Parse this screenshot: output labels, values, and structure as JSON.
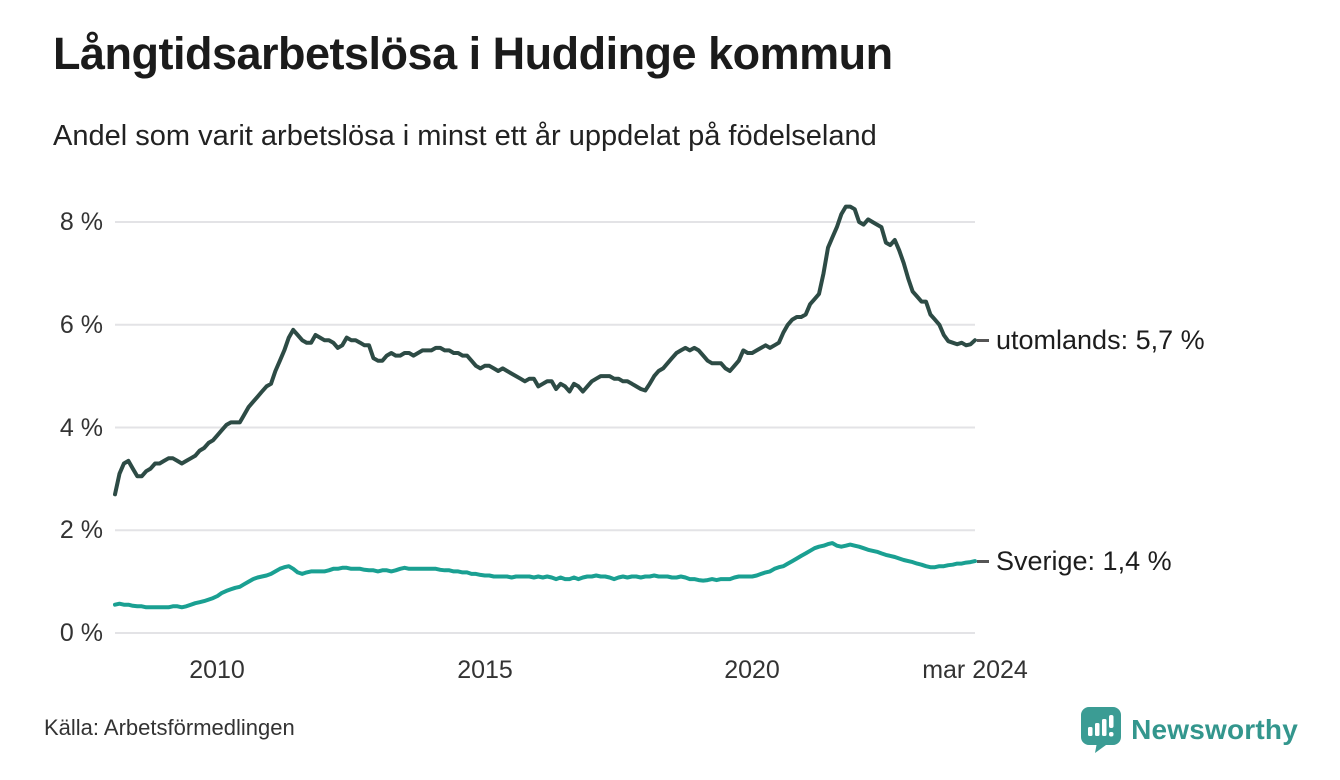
{
  "header": {
    "title": "Långtidsarbetslösa i Huddinge kommun",
    "subtitle": "Andel som varit arbetslösa i minst ett år uppdelat på födelseland"
  },
  "footer": {
    "source": "Källa: Arbetsförmedlingen",
    "brand": "Newsworthy"
  },
  "colors": {
    "utomlands_line": "#2d4b45",
    "sverige_line": "#1aa092",
    "grid": "#e3e3e6",
    "brand_teal": "#3b9c94",
    "text_dark": "#1d1d1d"
  },
  "chart_data": {
    "type": "line",
    "title": "Långtidsarbetslösa i Huddinge kommun",
    "subtitle": "Andel som varit arbetslösa i minst ett år uppdelat på födelseland",
    "grid": true,
    "legend_position": "end-of-line",
    "ylim": [
      0,
      8.6
    ],
    "x_start": {
      "year": 2008,
      "month": 2
    },
    "x_end": {
      "year": 2024,
      "month": 3
    },
    "yticks": [
      {
        "value": 0,
        "label": "0 %"
      },
      {
        "value": 2,
        "label": "2 %"
      },
      {
        "value": 4,
        "label": "4 %"
      },
      {
        "value": 6,
        "label": "6 %"
      },
      {
        "value": 8,
        "label": "8 %"
      }
    ],
    "xticks": [
      {
        "year": 2010,
        "month": 1,
        "label": "2010"
      },
      {
        "year": 2015,
        "month": 1,
        "label": "2015"
      },
      {
        "year": 2020,
        "month": 1,
        "label": "2020"
      },
      {
        "year": 2024,
        "month": 3,
        "label": "mar 2024"
      }
    ],
    "series": [
      {
        "name": "utomlands",
        "end_label": "utomlands: 5,7 %",
        "end_value_label": "5,7 %",
        "color": "#2d4b45",
        "values": [
          2.7,
          3.1,
          3.3,
          3.35,
          3.2,
          3.05,
          3.05,
          3.15,
          3.2,
          3.3,
          3.3,
          3.35,
          3.4,
          3.4,
          3.35,
          3.3,
          3.35,
          3.4,
          3.45,
          3.55,
          3.6,
          3.7,
          3.75,
          3.85,
          3.95,
          4.05,
          4.1,
          4.1,
          4.1,
          4.25,
          4.4,
          4.5,
          4.6,
          4.7,
          4.8,
          4.85,
          5.1,
          5.3,
          5.5,
          5.75,
          5.9,
          5.8,
          5.7,
          5.65,
          5.65,
          5.8,
          5.75,
          5.7,
          5.7,
          5.65,
          5.55,
          5.6,
          5.75,
          5.7,
          5.7,
          5.65,
          5.6,
          5.6,
          5.35,
          5.3,
          5.3,
          5.4,
          5.45,
          5.4,
          5.4,
          5.45,
          5.45,
          5.4,
          5.45,
          5.5,
          5.5,
          5.5,
          5.55,
          5.55,
          5.5,
          5.5,
          5.45,
          5.45,
          5.4,
          5.4,
          5.3,
          5.2,
          5.15,
          5.2,
          5.2,
          5.15,
          5.1,
          5.15,
          5.1,
          5.05,
          5.0,
          4.95,
          4.9,
          4.95,
          4.95,
          4.8,
          4.85,
          4.9,
          4.9,
          4.75,
          4.85,
          4.8,
          4.7,
          4.85,
          4.8,
          4.7,
          4.8,
          4.9,
          4.95,
          5.0,
          5.0,
          5.0,
          4.95,
          4.95,
          4.9,
          4.9,
          4.85,
          4.8,
          4.75,
          4.72,
          4.85,
          5.0,
          5.1,
          5.15,
          5.25,
          5.35,
          5.45,
          5.5,
          5.55,
          5.5,
          5.55,
          5.5,
          5.4,
          5.3,
          5.25,
          5.25,
          5.25,
          5.15,
          5.1,
          5.2,
          5.3,
          5.5,
          5.45,
          5.45,
          5.5,
          5.55,
          5.6,
          5.55,
          5.6,
          5.65,
          5.85,
          6.0,
          6.1,
          6.15,
          6.15,
          6.2,
          6.4,
          6.5,
          6.6,
          7.0,
          7.5,
          7.7,
          7.9,
          8.15,
          8.3,
          8.3,
          8.25,
          8.0,
          7.95,
          8.05,
          8.0,
          7.95,
          7.9,
          7.6,
          7.55,
          7.65,
          7.45,
          7.2,
          6.9,
          6.65,
          6.55,
          6.45,
          6.45,
          6.2,
          6.1,
          6.0,
          5.8,
          5.68,
          5.65,
          5.62,
          5.65,
          5.6,
          5.62,
          5.7
        ]
      },
      {
        "name": "Sverige",
        "end_label": "Sverige: 1,4 %",
        "end_value_label": "1,4 %",
        "color": "#1aa092",
        "values": [
          0.55,
          0.57,
          0.55,
          0.55,
          0.53,
          0.52,
          0.52,
          0.5,
          0.5,
          0.5,
          0.5,
          0.5,
          0.5,
          0.52,
          0.52,
          0.5,
          0.52,
          0.55,
          0.58,
          0.6,
          0.62,
          0.65,
          0.68,
          0.72,
          0.78,
          0.82,
          0.85,
          0.88,
          0.9,
          0.95,
          1.0,
          1.05,
          1.08,
          1.1,
          1.12,
          1.15,
          1.2,
          1.25,
          1.28,
          1.3,
          1.25,
          1.18,
          1.15,
          1.18,
          1.2,
          1.2,
          1.2,
          1.2,
          1.22,
          1.25,
          1.25,
          1.27,
          1.27,
          1.25,
          1.25,
          1.25,
          1.23,
          1.22,
          1.22,
          1.2,
          1.22,
          1.22,
          1.2,
          1.22,
          1.25,
          1.27,
          1.25,
          1.25,
          1.25,
          1.25,
          1.25,
          1.25,
          1.25,
          1.23,
          1.22,
          1.22,
          1.2,
          1.2,
          1.18,
          1.18,
          1.15,
          1.15,
          1.13,
          1.12,
          1.12,
          1.1,
          1.1,
          1.1,
          1.1,
          1.08,
          1.1,
          1.1,
          1.1,
          1.1,
          1.08,
          1.1,
          1.08,
          1.1,
          1.08,
          1.05,
          1.08,
          1.05,
          1.05,
          1.08,
          1.05,
          1.08,
          1.1,
          1.1,
          1.12,
          1.1,
          1.1,
          1.08,
          1.05,
          1.08,
          1.1,
          1.08,
          1.1,
          1.1,
          1.08,
          1.1,
          1.1,
          1.12,
          1.1,
          1.1,
          1.1,
          1.08,
          1.08,
          1.1,
          1.08,
          1.05,
          1.05,
          1.03,
          1.02,
          1.03,
          1.05,
          1.03,
          1.05,
          1.05,
          1.05,
          1.08,
          1.1,
          1.1,
          1.1,
          1.1,
          1.12,
          1.15,
          1.18,
          1.2,
          1.25,
          1.28,
          1.3,
          1.35,
          1.4,
          1.45,
          1.5,
          1.55,
          1.6,
          1.65,
          1.68,
          1.7,
          1.73,
          1.75,
          1.7,
          1.68,
          1.7,
          1.72,
          1.7,
          1.68,
          1.65,
          1.62,
          1.6,
          1.58,
          1.55,
          1.52,
          1.5,
          1.48,
          1.45,
          1.42,
          1.4,
          1.38,
          1.35,
          1.33,
          1.3,
          1.28,
          1.28,
          1.3,
          1.3,
          1.32,
          1.33,
          1.35,
          1.35,
          1.37,
          1.38,
          1.4
        ]
      }
    ]
  }
}
